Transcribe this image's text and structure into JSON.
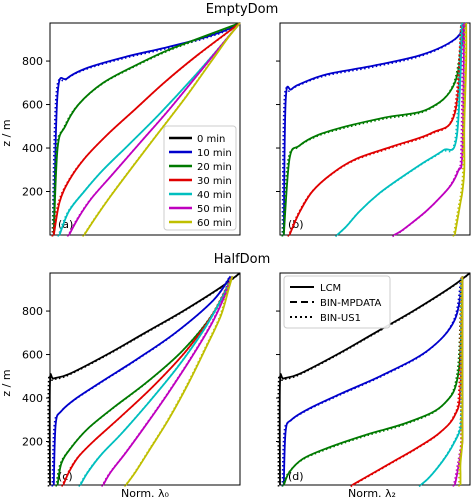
{
  "chart_data": [
    {
      "type": "line",
      "title": "EmptyDom",
      "panel_label": "(a)",
      "xlabel": "",
      "ylabel": "z / m",
      "ylim": [
        0,
        975
      ],
      "yticks": [
        "200",
        "400",
        "600",
        "800"
      ],
      "grid": false,
      "legend": {
        "placement": "lower-right",
        "entries": [
          {
            "name": "0  min",
            "color": "#000000"
          },
          {
            "name": "10 min",
            "color": "#0000cc"
          },
          {
            "name": "20 min",
            "color": "#007a00"
          },
          {
            "name": "30 min",
            "color": "#e00000"
          },
          {
            "name": "40 min",
            "color": "#00bfbf"
          },
          {
            "name": "50 min",
            "color": "#bf00bf"
          },
          {
            "name": "60 min",
            "color": "#bfbf00"
          }
        ]
      },
      "series": [
        {
          "name": "10 min",
          "color": "#0000cc",
          "x": [
            0.02,
            0.04,
            0.09,
            0.2,
            0.4,
            0.6,
            0.78,
            0.92,
            1.0
          ],
          "z": [
            0,
            650,
            720,
            770,
            820,
            860,
            900,
            940,
            975
          ]
        },
        {
          "name": "20 min",
          "color": "#007a00",
          "x": [
            0.02,
            0.04,
            0.08,
            0.15,
            0.28,
            0.45,
            0.62,
            0.8,
            1.0
          ],
          "z": [
            0,
            400,
            500,
            600,
            700,
            780,
            850,
            910,
            975
          ]
        },
        {
          "name": "30 min",
          "color": "#e00000",
          "x": [
            0.02,
            0.05,
            0.1,
            0.18,
            0.3,
            0.45,
            0.6,
            0.78,
            1.0
          ],
          "z": [
            0,
            150,
            250,
            350,
            460,
            580,
            700,
            830,
            975
          ]
        },
        {
          "name": "40 min",
          "color": "#00bfbf",
          "x": [
            0.05,
            0.1,
            0.18,
            0.28,
            0.42,
            0.58,
            0.75,
            0.88,
            1.0
          ],
          "z": [
            0,
            110,
            200,
            300,
            420,
            560,
            720,
            850,
            975
          ]
        },
        {
          "name": "50 min",
          "color": "#bf00bf",
          "x": [
            0.1,
            0.15,
            0.22,
            0.33,
            0.47,
            0.63,
            0.78,
            0.9,
            1.0
          ],
          "z": [
            0,
            80,
            170,
            280,
            420,
            580,
            740,
            870,
            975
          ]
        },
        {
          "name": "60 min",
          "color": "#bfbf00",
          "x": [
            0.18,
            0.24,
            0.32,
            0.44,
            0.58,
            0.72,
            0.85,
            0.94,
            1.0
          ],
          "z": [
            0,
            80,
            180,
            320,
            480,
            640,
            800,
            910,
            975
          ]
        }
      ]
    },
    {
      "type": "line",
      "panel_label": "(b)",
      "xlabel": "",
      "ylim": [
        0,
        975
      ],
      "grid": false,
      "series": [
        {
          "name": "10 min",
          "color": "#0000cc",
          "x": [
            0.02,
            0.03,
            0.06,
            0.12,
            0.25,
            0.5,
            0.75,
            0.92,
            0.98
          ],
          "z": [
            0,
            620,
            670,
            700,
            740,
            780,
            830,
            900,
            975
          ]
        },
        {
          "name": "20 min",
          "color": "#007a00",
          "x": [
            0.02,
            0.05,
            0.1,
            0.2,
            0.35,
            0.55,
            0.78,
            0.92,
            0.97
          ],
          "z": [
            0,
            350,
            410,
            460,
            500,
            540,
            580,
            700,
            975
          ]
        },
        {
          "name": "30 min",
          "color": "#e00000",
          "x": [
            0.05,
            0.1,
            0.17,
            0.27,
            0.4,
            0.6,
            0.8,
            0.92,
            0.96
          ],
          "z": [
            0,
            100,
            200,
            280,
            350,
            410,
            470,
            560,
            975
          ]
        },
        {
          "name": "40 min",
          "color": "#00bfbf",
          "x": [
            0.3,
            0.35,
            0.42,
            0.52,
            0.63,
            0.75,
            0.86,
            0.93,
            0.96
          ],
          "z": [
            0,
            40,
            110,
            190,
            260,
            330,
            390,
            450,
            975
          ]
        },
        {
          "name": "50 min",
          "color": "#bf00bf",
          "x": [
            0.6,
            0.64,
            0.7,
            0.77,
            0.84,
            0.9,
            0.94,
            0.96,
            0.97
          ],
          "z": [
            0,
            20,
            60,
            110,
            170,
            230,
            300,
            380,
            975
          ]
        },
        {
          "name": "60 min",
          "color": "#bfbf00",
          "x": [
            0.92,
            0.93,
            0.94,
            0.95,
            0.96,
            0.97,
            0.97,
            0.98,
            0.98
          ],
          "z": [
            0,
            50,
            100,
            150,
            200,
            300,
            500,
            800,
            975
          ]
        }
      ]
    },
    {
      "type": "line",
      "title": "HalfDom",
      "panel_label": "(c)",
      "xlabel": "Norm. λ₀",
      "ylabel": "z / m",
      "ylim": [
        0,
        975
      ],
      "yticks": [
        "200",
        "400",
        "600",
        "800"
      ],
      "grid": false,
      "series": [
        {
          "name": "0  min",
          "color": "#000000",
          "x": [
            0.0,
            0.0,
            0.02,
            0.1,
            0.3,
            0.5,
            0.7,
            0.9,
            1.0
          ],
          "z": [
            0,
            470,
            490,
            510,
            600,
            700,
            800,
            910,
            975
          ]
        },
        {
          "name": "10 min",
          "color": "#0000cc",
          "x": [
            0.02,
            0.03,
            0.06,
            0.14,
            0.28,
            0.46,
            0.66,
            0.86,
            0.95
          ],
          "z": [
            0,
            280,
            340,
            400,
            480,
            580,
            700,
            850,
            960
          ]
        },
        {
          "name": "20 min",
          "color": "#007a00",
          "x": [
            0.04,
            0.06,
            0.11,
            0.2,
            0.34,
            0.52,
            0.7,
            0.86,
            0.96
          ],
          "z": [
            0,
            100,
            170,
            260,
            360,
            480,
            620,
            790,
            960
          ]
        },
        {
          "name": "30 min",
          "color": "#e00000",
          "x": [
            0.07,
            0.1,
            0.15,
            0.24,
            0.38,
            0.55,
            0.72,
            0.86,
            0.96
          ],
          "z": [
            0,
            60,
            130,
            210,
            320,
            460,
            620,
            790,
            960
          ]
        },
        {
          "name": "40 min",
          "color": "#00bfbf",
          "x": [
            0.16,
            0.2,
            0.27,
            0.38,
            0.52,
            0.67,
            0.8,
            0.9,
            0.96
          ],
          "z": [
            0,
            60,
            140,
            240,
            380,
            540,
            700,
            850,
            960
          ]
        },
        {
          "name": "50 min",
          "color": "#bf00bf",
          "x": [
            0.28,
            0.32,
            0.4,
            0.5,
            0.62,
            0.74,
            0.85,
            0.92,
            0.96
          ],
          "z": [
            0,
            60,
            150,
            270,
            420,
            580,
            740,
            870,
            960
          ]
        },
        {
          "name": "60 min",
          "color": "#bfbf00",
          "x": [
            0.4,
            0.45,
            0.53,
            0.63,
            0.73,
            0.82,
            0.9,
            0.94,
            0.96
          ],
          "z": [
            0,
            60,
            170,
            310,
            470,
            630,
            780,
            900,
            960
          ]
        }
      ]
    },
    {
      "type": "line",
      "panel_label": "(d)",
      "xlabel": "Norm. λ₂",
      "ylim": [
        0,
        975
      ],
      "grid": false,
      "legend": {
        "placement": "upper-left",
        "entries": [
          {
            "name": "LCM",
            "style": "solid"
          },
          {
            "name": "BIN-MPDATA",
            "style": "dashed"
          },
          {
            "name": "BIN-US1",
            "style": "dotted"
          }
        ]
      },
      "series": [
        {
          "name": "0  min",
          "color": "#000000",
          "x": [
            0.0,
            0.0,
            0.02,
            0.1,
            0.3,
            0.5,
            0.7,
            0.9,
            1.0
          ],
          "z": [
            0,
            470,
            490,
            510,
            600,
            700,
            800,
            910,
            975
          ]
        },
        {
          "name": "10 min",
          "color": "#0000cc",
          "x": [
            0.02,
            0.03,
            0.06,
            0.15,
            0.32,
            0.55,
            0.78,
            0.92,
            0.96
          ],
          "z": [
            0,
            250,
            300,
            350,
            420,
            510,
            620,
            760,
            960
          ]
        },
        {
          "name": "20 min",
          "color": "#007a00",
          "x": [
            0.02,
            0.05,
            0.12,
            0.25,
            0.45,
            0.68,
            0.86,
            0.94,
            0.96
          ],
          "z": [
            0,
            60,
            120,
            170,
            230,
            290,
            370,
            520,
            960
          ]
        },
        {
          "name": "30 min",
          "color": "#e00000",
          "x": [
            0.38,
            0.42,
            0.5,
            0.6,
            0.72,
            0.84,
            0.92,
            0.95,
            0.96
          ],
          "z": [
            0,
            20,
            60,
            110,
            170,
            240,
            320,
            450,
            960
          ]
        },
        {
          "name": "40 min",
          "color": "#00bfbf",
          "x": [
            0.74,
            0.78,
            0.83,
            0.88,
            0.92,
            0.95,
            0.96,
            0.96,
            0.96
          ],
          "z": [
            0,
            30,
            80,
            140,
            200,
            260,
            350,
            500,
            960
          ]
        },
        {
          "name": "50 min",
          "color": "#bf00bf",
          "x": [
            0.92,
            0.93,
            0.94,
            0.95,
            0.96,
            0.96,
            0.96,
            0.96,
            0.96
          ],
          "z": [
            0,
            40,
            90,
            140,
            200,
            300,
            450,
            700,
            960
          ]
        },
        {
          "name": "60 min",
          "color": "#bfbf00",
          "x": [
            0.95,
            0.95,
            0.95,
            0.96,
            0.96,
            0.96,
            0.96,
            0.96,
            0.96
          ],
          "z": [
            0,
            50,
            100,
            200,
            300,
            450,
            650,
            850,
            960
          ]
        }
      ]
    }
  ]
}
